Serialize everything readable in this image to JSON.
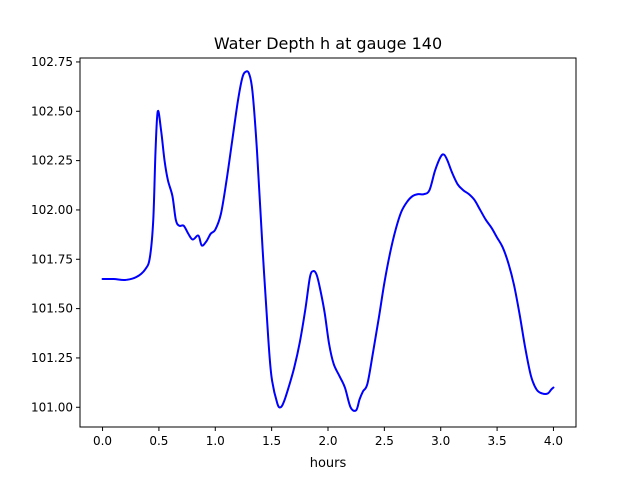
{
  "chart_data": {
    "type": "line",
    "title": "Water Depth h at gauge 140",
    "xlabel": "hours",
    "ylabel": "",
    "xlim": [
      -0.2,
      4.2
    ],
    "ylim": [
      100.9,
      102.77
    ],
    "grid": false,
    "legend": "none",
    "xticks": [
      0.0,
      0.5,
      1.0,
      1.5,
      2.0,
      2.5,
      3.0,
      3.5,
      4.0
    ],
    "xtick_labels": [
      "0.0",
      "0.5",
      "1.0",
      "1.5",
      "2.0",
      "2.5",
      "3.0",
      "3.5",
      "4.0"
    ],
    "yticks": [
      101.0,
      101.25,
      101.5,
      101.75,
      102.0,
      102.25,
      102.5,
      102.75
    ],
    "ytick_labels": [
      "101.00",
      "101.25",
      "101.50",
      "101.75",
      "102.00",
      "102.25",
      "102.50",
      "102.75"
    ],
    "series": [
      {
        "name": "",
        "color": "#0000ff",
        "x": [
          0.0,
          0.1,
          0.2,
          0.3,
          0.38,
          0.42,
          0.45,
          0.47,
          0.49,
          0.52,
          0.55,
          0.58,
          0.62,
          0.65,
          0.68,
          0.72,
          0.76,
          0.8,
          0.85,
          0.88,
          0.92,
          0.96,
          1.0,
          1.05,
          1.1,
          1.15,
          1.2,
          1.24,
          1.27,
          1.3,
          1.33,
          1.37,
          1.42,
          1.47,
          1.5,
          1.55,
          1.58,
          1.61,
          1.65,
          1.7,
          1.75,
          1.8,
          1.84,
          1.87,
          1.9,
          1.93,
          1.97,
          2.01,
          2.05,
          2.1,
          2.15,
          2.2,
          2.25,
          2.28,
          2.31,
          2.35,
          2.4,
          2.45,
          2.5,
          2.55,
          2.6,
          2.65,
          2.7,
          2.75,
          2.8,
          2.85,
          2.9,
          2.95,
          3.0,
          3.03,
          3.06,
          3.1,
          3.15,
          3.2,
          3.25,
          3.3,
          3.35,
          3.4,
          3.45,
          3.5,
          3.55,
          3.6,
          3.65,
          3.7,
          3.75,
          3.8,
          3.85,
          3.9,
          3.95,
          3.98,
          4.0
        ],
        "values": [
          101.65,
          101.65,
          101.645,
          101.66,
          101.7,
          101.76,
          101.95,
          102.3,
          102.5,
          102.4,
          102.25,
          102.15,
          102.07,
          101.95,
          101.92,
          101.92,
          101.88,
          101.85,
          101.87,
          101.82,
          101.84,
          101.88,
          101.9,
          101.98,
          102.15,
          102.35,
          102.55,
          102.67,
          102.7,
          102.69,
          102.6,
          102.3,
          101.8,
          101.35,
          101.15,
          101.02,
          101.0,
          101.03,
          101.1,
          101.2,
          101.33,
          101.5,
          101.66,
          101.69,
          101.67,
          101.6,
          101.48,
          101.32,
          101.22,
          101.16,
          101.1,
          101.0,
          100.985,
          101.04,
          101.08,
          101.12,
          101.28,
          101.45,
          101.63,
          101.78,
          101.9,
          101.99,
          102.04,
          102.07,
          102.08,
          102.08,
          102.1,
          102.2,
          102.27,
          102.28,
          102.25,
          102.19,
          102.13,
          102.1,
          102.08,
          102.05,
          102.0,
          101.95,
          101.91,
          101.86,
          101.81,
          101.73,
          101.62,
          101.47,
          101.3,
          101.16,
          101.09,
          101.07,
          101.07,
          101.09,
          101.1
        ]
      }
    ]
  }
}
